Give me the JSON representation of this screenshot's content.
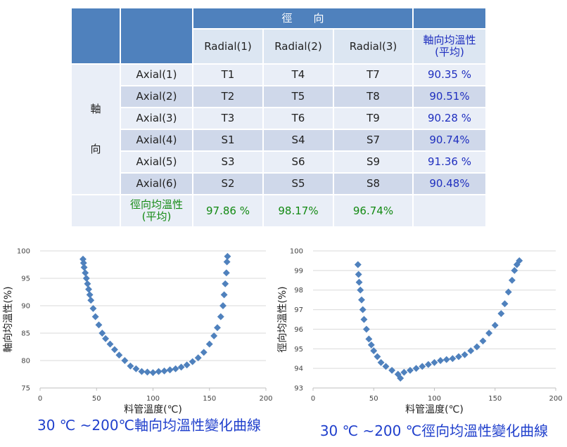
{
  "table": {
    "group_header": "徑　　向",
    "columns": [
      "Radial(1)",
      "Radial(2)",
      "Radial(3)"
    ],
    "avg_header": [
      "軸向均溫性",
      "(平均)"
    ],
    "side_label": [
      "軸",
      "向"
    ],
    "rows": [
      {
        "label": "Axial(1)",
        "cells": [
          "T1",
          "T4",
          "T7"
        ],
        "avg": "90.35 %"
      },
      {
        "label": "Axial(2)",
        "cells": [
          "T2",
          "T5",
          "T8"
        ],
        "avg": "90.51%"
      },
      {
        "label": "Axial(3)",
        "cells": [
          "T3",
          "T6",
          "T9"
        ],
        "avg": "90.28 %"
      },
      {
        "label": "Axial(4)",
        "cells": [
          "S1",
          "S4",
          "S7"
        ],
        "avg": "90.74%"
      },
      {
        "label": "Axial(5)",
        "cells": [
          "S3",
          "S6",
          "S9"
        ],
        "avg": "91.36 %"
      },
      {
        "label": "Axial(6)",
        "cells": [
          "S2",
          "S5",
          "S8"
        ],
        "avg": "90.48%"
      }
    ],
    "footer": {
      "label": [
        "徑向均溫性",
        "(平均)"
      ],
      "values": [
        "97.86 %",
        "98.17%",
        "96.74%"
      ]
    }
  },
  "chart_data": [
    {
      "type": "scatter",
      "title": "30 ℃ ~200℃軸向均溫性變化曲線",
      "x_label": "料管溫度(℃)",
      "y_label": "軸向均溫性(%)",
      "xlim": [
        0,
        200
      ],
      "ylim": [
        75,
        100
      ],
      "xticks": [
        0,
        50,
        100,
        150,
        200
      ],
      "yticks": [
        75,
        80,
        85,
        90,
        95,
        100
      ],
      "grid": true,
      "series": [
        {
          "color": "#4f81bd",
          "x": [
            38,
            38.5,
            39,
            40,
            41,
            42,
            43,
            44,
            45,
            47,
            49,
            52,
            55,
            58,
            62,
            66,
            70,
            75,
            80,
            85,
            90,
            95,
            100,
            105,
            110,
            115,
            120,
            125,
            130,
            135,
            140,
            145,
            150,
            154,
            157,
            160,
            162,
            163,
            164,
            165,
            165.5,
            166
          ],
          "values": [
            98.5,
            97.8,
            97,
            96,
            95,
            94,
            93,
            92,
            91,
            89.5,
            88,
            86.5,
            85,
            84,
            83,
            82,
            81,
            80,
            79,
            78.5,
            78,
            77.9,
            77.8,
            78,
            78.1,
            78.3,
            78.5,
            78.8,
            79.2,
            79.8,
            80.5,
            81.5,
            83,
            84.5,
            86,
            88,
            90,
            92,
            94,
            96,
            98,
            99
          ]
        }
      ]
    },
    {
      "type": "scatter",
      "title": "30 ℃ ~200 ℃徑向均溫性變化曲線",
      "x_label": "料管溫度(℃)",
      "y_label": "徑向均溫性(%)",
      "xlim": [
        0,
        200
      ],
      "ylim": [
        93,
        100
      ],
      "xticks": [
        0,
        50,
        100,
        150,
        200
      ],
      "yticks": [
        93,
        94,
        95,
        96,
        97,
        98,
        99,
        100
      ],
      "grid": true,
      "series": [
        {
          "color": "#4f81bd",
          "x": [
            37,
            37.5,
            38,
            39,
            40,
            41,
            42,
            44,
            46,
            48,
            50,
            53,
            56,
            60,
            65,
            70,
            72,
            75,
            80,
            85,
            90,
            95,
            100,
            105,
            110,
            115,
            120,
            125,
            130,
            135,
            140,
            145,
            150,
            155,
            158,
            161,
            164,
            166,
            168,
            170
          ],
          "values": [
            99.3,
            98.8,
            98.4,
            98,
            97.5,
            97,
            96.5,
            96,
            95.5,
            95.2,
            94.9,
            94.6,
            94.3,
            94.1,
            93.9,
            93.7,
            93.5,
            93.8,
            93.9,
            94,
            94.1,
            94.2,
            94.3,
            94.4,
            94.45,
            94.5,
            94.6,
            94.7,
            94.9,
            95.1,
            95.4,
            95.8,
            96.2,
            96.8,
            97.3,
            97.9,
            98.5,
            99,
            99.3,
            99.5
          ]
        }
      ]
    }
  ]
}
